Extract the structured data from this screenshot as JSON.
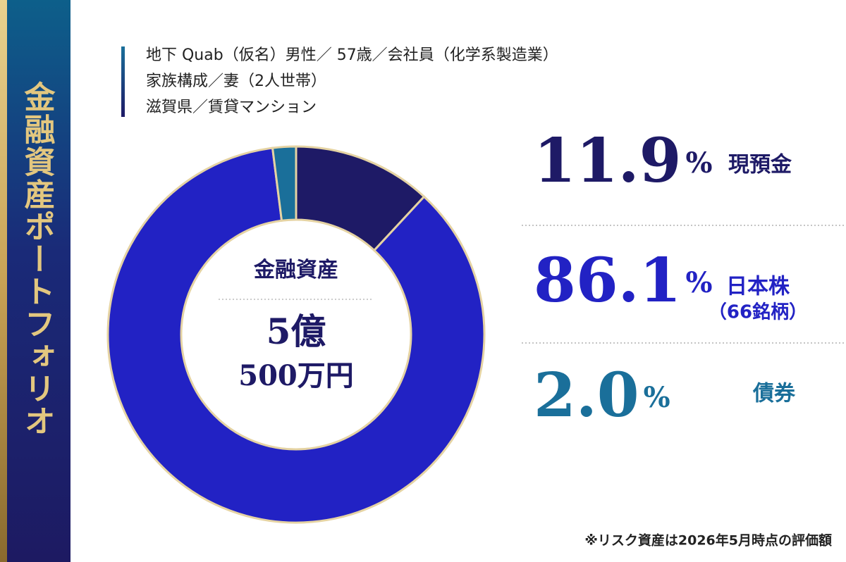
{
  "chart_data": {
    "type": "pie",
    "title": "金融資産ポートフォリオ",
    "profile": [
      "地下 Quab（仮名）男性／ 57歳／会社員（化学系製造業）",
      "家族構成／妻（2人世帯）",
      "滋賀県／賃貸マンション"
    ],
    "center_label": "金融資産",
    "center_value": [
      "5億",
      "500万円"
    ],
    "categories": [
      "現預金",
      "日本株",
      "債券"
    ],
    "category_notes": [
      null,
      "（66銘柄）",
      null
    ],
    "values": [
      11.9,
      86.1,
      2.0
    ],
    "value_labels": [
      "11.9%",
      "86.1%",
      "2.0%"
    ],
    "colors": [
      "#1e1a66",
      "#2222c4",
      "#1a6f9a"
    ],
    "donut": true,
    "footnote": "※リスク資産は2026年5月時点の評価額"
  }
}
